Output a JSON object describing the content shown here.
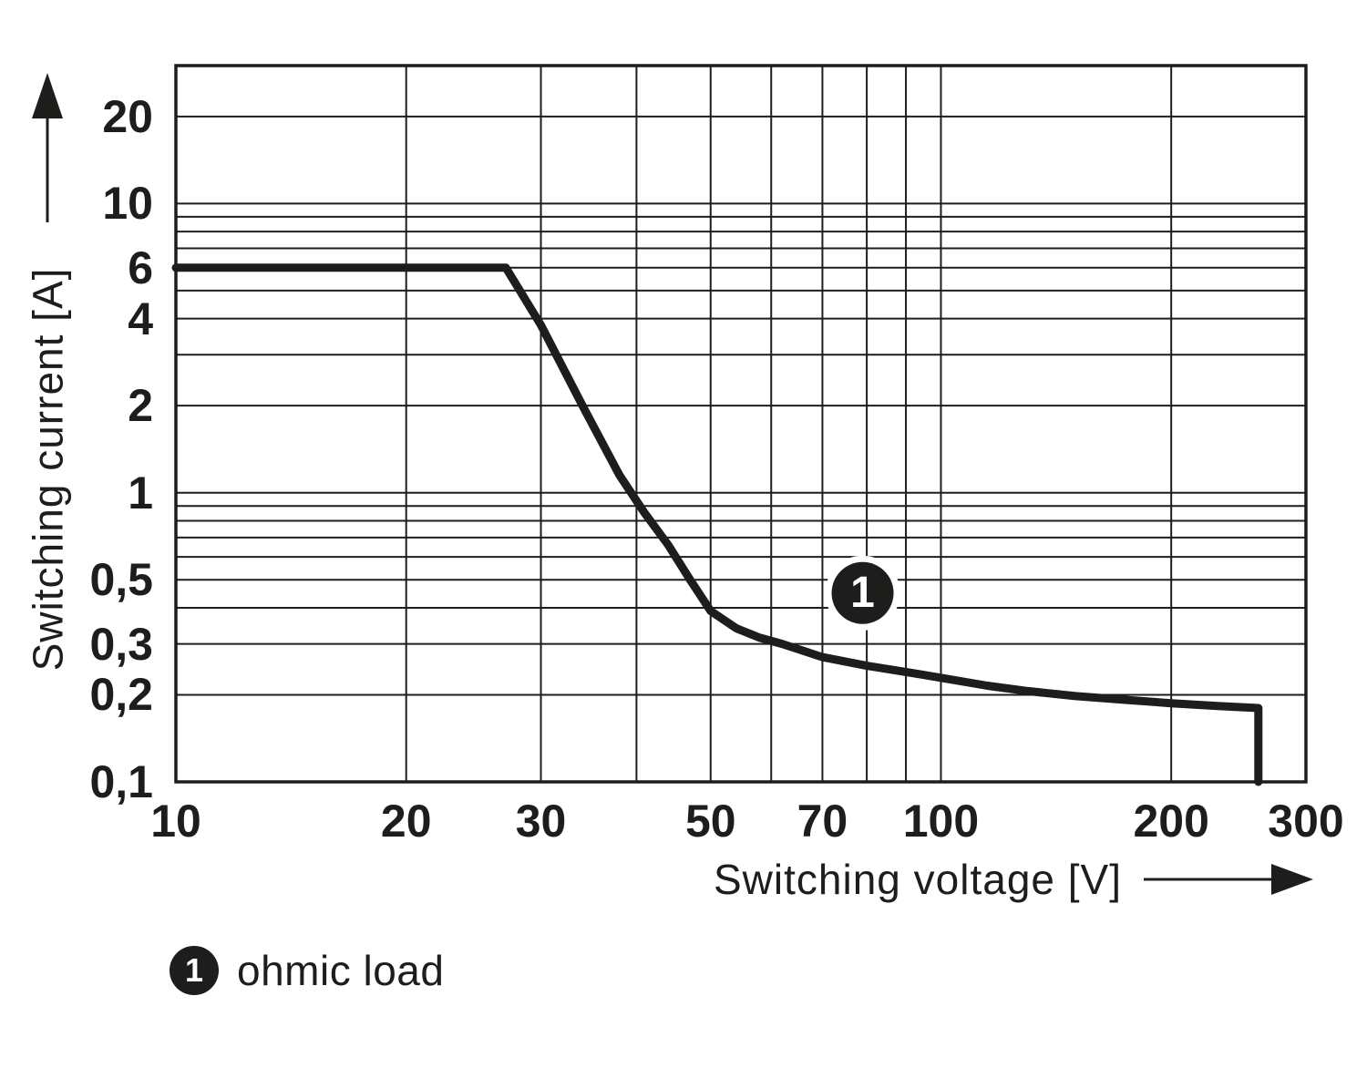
{
  "page": {
    "background": "#ffffff"
  },
  "colors": {
    "ink": "#1d1d1b",
    "grid": "#1d1d1b",
    "curve": "#1d1d1b",
    "background": "#ffffff",
    "badge_bg": "#1d1d1b",
    "badge_text": "#ffffff",
    "badge_halo": "#ffffff"
  },
  "chart_data": {
    "type": "line",
    "title": "",
    "grid": true,
    "legend_position": "below-left",
    "x_axis": {
      "label": "Switching voltage [V]",
      "scale": "log",
      "min": 10,
      "max": 300,
      "tick_labels": [
        "10",
        "20",
        "30",
        "50",
        "70",
        "100",
        "200",
        "300"
      ],
      "tick_values": [
        10,
        20,
        30,
        50,
        70,
        100,
        200,
        300
      ],
      "gridline_values": [
        10,
        20,
        30,
        40,
        50,
        60,
        70,
        80,
        90,
        100,
        200,
        300
      ]
    },
    "y_axis": {
      "label": "Switching current [A]",
      "scale": "log",
      "min": 0.1,
      "max": 30,
      "tick_labels": [
        "20",
        "10",
        "6",
        "4",
        "2",
        "1",
        "0,5",
        "0,3",
        "0,2",
        "0,1"
      ],
      "tick_values": [
        20,
        10,
        6,
        4,
        2,
        1,
        0.5,
        0.3,
        0.2,
        0.1
      ],
      "gridline_values": [
        0.1,
        0.2,
        0.3,
        0.4,
        0.5,
        0.6,
        0.7,
        0.8,
        0.9,
        1,
        2,
        3,
        4,
        5,
        6,
        7,
        8,
        9,
        10,
        20,
        30
      ]
    },
    "series": [
      {
        "name": "ohmic load",
        "marker": "1",
        "points": [
          [
            10,
            6
          ],
          [
            27,
            6
          ],
          [
            30,
            3.8
          ],
          [
            34,
            2.0
          ],
          [
            38,
            1.15
          ],
          [
            41,
            0.85
          ],
          [
            44,
            0.66
          ],
          [
            47,
            0.5
          ],
          [
            50,
            0.39
          ],
          [
            54,
            0.34
          ],
          [
            58,
            0.315
          ],
          [
            62,
            0.3
          ],
          [
            70,
            0.27
          ],
          [
            80,
            0.252
          ],
          [
            90,
            0.24
          ],
          [
            100,
            0.229
          ],
          [
            115,
            0.215
          ],
          [
            130,
            0.206
          ],
          [
            150,
            0.198
          ],
          [
            175,
            0.192
          ],
          [
            200,
            0.187
          ],
          [
            230,
            0.183
          ],
          [
            260,
            0.18
          ],
          [
            260,
            0.1
          ]
        ],
        "marker_at": {
          "x": 79,
          "y": 0.45
        }
      }
    ]
  },
  "legend": {
    "items": [
      {
        "marker": "1",
        "label": "ohmic load"
      }
    ]
  }
}
